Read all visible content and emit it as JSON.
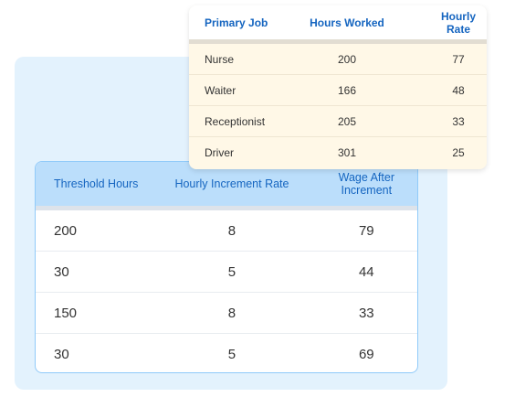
{
  "upper_table": {
    "headers": [
      "Primary Job",
      "Hours Worked",
      "Hourly Rate"
    ],
    "rows": [
      [
        "Nurse",
        "200",
        "77"
      ],
      [
        "Waiter",
        "166",
        "48"
      ],
      [
        "Receptionist",
        "205",
        "33"
      ],
      [
        "Driver",
        "301",
        "25"
      ]
    ]
  },
  "lower_table": {
    "headers": [
      "Threshold Hours",
      "Hourly Increment Rate",
      "Wage After Increment"
    ],
    "rows": [
      [
        "200",
        "8",
        "79"
      ],
      [
        "30",
        "5",
        "44"
      ],
      [
        "150",
        "8",
        "33"
      ],
      [
        "30",
        "5",
        "69"
      ]
    ]
  },
  "colors": {
    "background_panel": "#e3f2fd",
    "header_blue": "#bbdefb",
    "header_text": "#1565c0",
    "upper_body": "#fff8e7"
  }
}
